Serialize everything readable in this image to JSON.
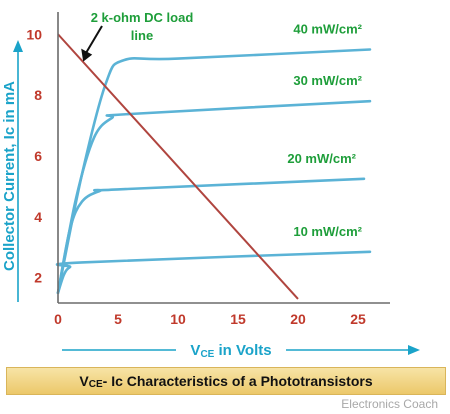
{
  "chart_data": {
    "type": "line",
    "x_range": [
      0,
      27
    ],
    "y_range": [
      1.2,
      10.6
    ],
    "x_ticks": [
      0,
      5,
      10,
      15,
      20,
      25
    ],
    "y_ticks": [
      2,
      4,
      6,
      8,
      10
    ],
    "xlabel": "VCE in Volts",
    "ylabel": "Collector Current, Ic in mA",
    "series": [
      {
        "name": "40 mW/cm²",
        "points": [
          [
            0,
            1.5
          ],
          [
            2,
            5.4
          ],
          [
            4,
            8.4
          ],
          [
            5.5,
            9.15
          ],
          [
            10,
            9.2
          ],
          [
            26,
            9.5
          ]
        ]
      },
      {
        "name": "30 mW/cm²",
        "points": [
          [
            0,
            1.5
          ],
          [
            1.5,
            4.6
          ],
          [
            3,
            6.6
          ],
          [
            4.5,
            7.25
          ],
          [
            6,
            7.38
          ],
          [
            26,
            7.8
          ]
        ]
      },
      {
        "name": "20 mW/cm²",
        "points": [
          [
            0,
            1.5
          ],
          [
            1,
            3.6
          ],
          [
            2,
            4.5
          ],
          [
            3.5,
            4.85
          ],
          [
            5,
            4.9
          ],
          [
            25.5,
            5.25
          ]
        ]
      },
      {
        "name": "10 mW/cm²",
        "points": [
          [
            0,
            1.5
          ],
          [
            0.5,
            2.1
          ],
          [
            1,
            2.35
          ],
          [
            2,
            2.5
          ],
          [
            26,
            2.85
          ]
        ]
      }
    ],
    "load_line": {
      "label": "2 k-ohm DC load line",
      "points": [
        [
          0,
          10
        ],
        [
          20,
          1.3
        ]
      ]
    },
    "title": "VCE - Ic Characteristics of a Phototransistors"
  },
  "labels": {
    "load_line_line1": "2 k-ohm DC load",
    "load_line_line2": "line",
    "vce_main": "V",
    "vce_sub": "CE",
    "vce_rest": " in Volts",
    "caption_main": "V",
    "caption_sub": "CE",
    "caption_rest": " - Ic Characteristics of a Phototransistors",
    "watermark": "Electronics Coach"
  },
  "colors": {
    "curve": "#5bb3d6",
    "load_line": "#b0453f",
    "tick": "#c0392b",
    "series_label": "#1e9e3a",
    "axis_title": "#1aa3c9"
  }
}
